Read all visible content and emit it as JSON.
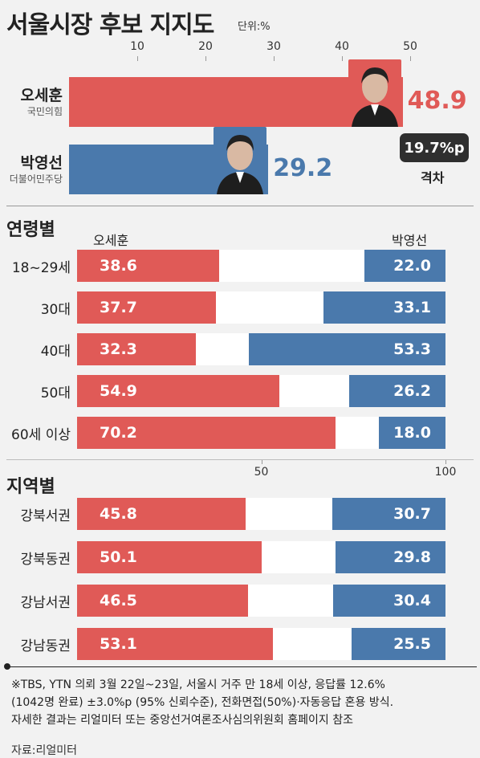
{
  "title": "서울시장 후보 지지도",
  "unit": "단위:%",
  "colors": {
    "oh": "#e05a57",
    "park": "#4a79ac",
    "dark": "#2f2f2f"
  },
  "chart_data": [
    {
      "type": "bar",
      "orientation": "horizontal",
      "title": "서울시장 후보 지지도",
      "unit": "%",
      "xlim": [
        0,
        50
      ],
      "xticks": [
        "10",
        "20",
        "30",
        "40",
        "50"
      ],
      "categories": [
        "오세훈",
        "박영선"
      ],
      "subtitles": [
        "국민의힘",
        "더불어민주당"
      ],
      "values": [
        48.9,
        29.2
      ],
      "value_labels": [
        "48.9",
        "29.2"
      ],
      "gap_label": "19.7%p",
      "gap_caption": "격차"
    },
    {
      "type": "bar",
      "orientation": "horizontal",
      "stacked": true,
      "title": "연령별",
      "xlim": [
        0,
        100
      ],
      "xticks": [
        "50",
        "100"
      ],
      "categories": [
        "18~29세",
        "30대",
        "40대",
        "50대",
        "60세 이상"
      ],
      "series": [
        {
          "name": "오세훈",
          "values": [
            38.6,
            37.7,
            32.3,
            54.9,
            70.2
          ],
          "labels": [
            "38.6",
            "37.7",
            "32.3",
            "54.9",
            "70.2"
          ]
        },
        {
          "name": "박영선",
          "values": [
            22.0,
            33.1,
            53.3,
            26.2,
            18.0
          ],
          "labels": [
            "22.0",
            "33.1",
            "53.3",
            "26.2",
            "18.0"
          ]
        }
      ]
    },
    {
      "type": "bar",
      "orientation": "horizontal",
      "stacked": true,
      "title": "지역별",
      "xlim": [
        0,
        100
      ],
      "categories": [
        "강북서권",
        "강북동권",
        "강남서권",
        "강남동권"
      ],
      "series": [
        {
          "name": "오세훈",
          "values": [
            45.8,
            50.1,
            46.5,
            53.1
          ],
          "labels": [
            "45.8",
            "50.1",
            "46.5",
            "53.1"
          ]
        },
        {
          "name": "박영선",
          "values": [
            30.7,
            29.8,
            30.4,
            25.5
          ],
          "labels": [
            "30.7",
            "29.8",
            "30.4",
            "25.5"
          ]
        }
      ]
    }
  ],
  "notes": [
    "※TBS, YTN 의뢰 3월 22일~23일, 서울시 거주 만 18세 이상, 응답률 12.6%",
    "(1042명 완료) ±3.0%p (95% 신뢰수준), 전화면접(50%)·자동응답 혼용 방식.",
    "자세한 결과는 리얼미터 또는 중앙선거여론조사심의위원회 홈페이지 참조"
  ],
  "source": "자료:리얼미터"
}
